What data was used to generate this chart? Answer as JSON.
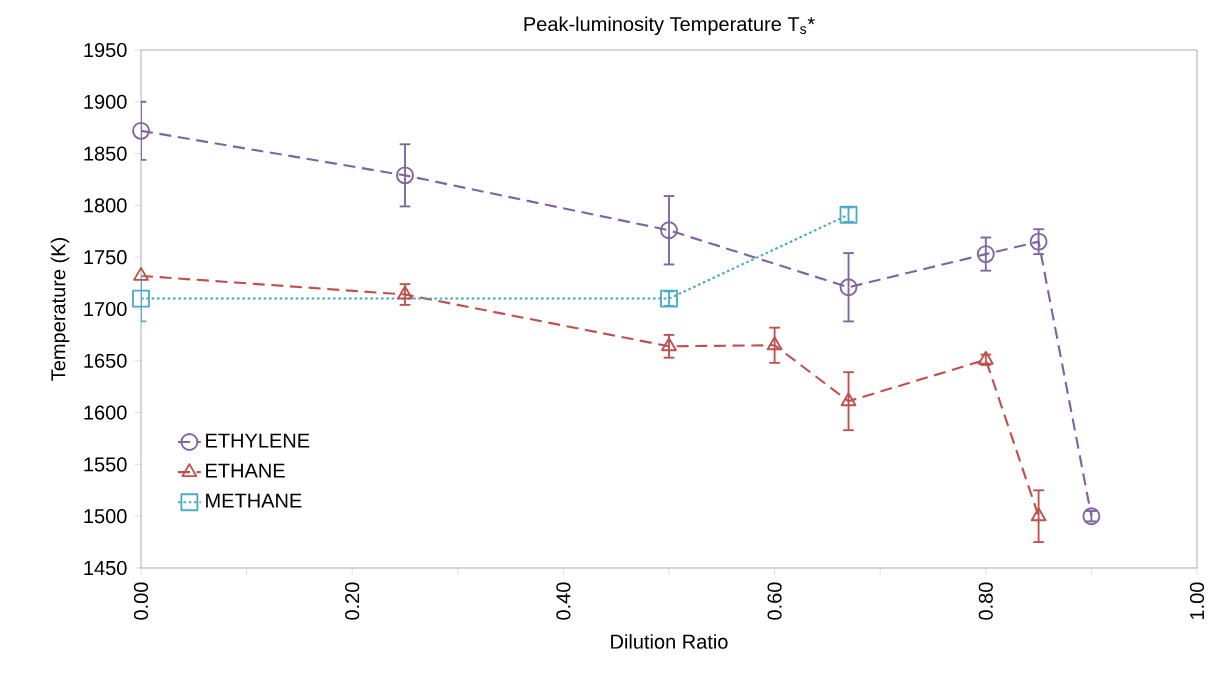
{
  "chart_data": {
    "type": "line",
    "title": "Peak-luminosity Temperature T$_{s}$*",
    "xlabel": "Dilution Ratio",
    "ylabel": "Temperature (K)",
    "xlim": [
      0,
      1
    ],
    "ylim": [
      1450,
      1950
    ],
    "xticks": [
      {
        "value": 0,
        "label": "0.00"
      },
      {
        "value": 0.1,
        "label": null
      },
      {
        "value": 0.2,
        "label": "0.20"
      },
      {
        "value": 0.3,
        "label": null
      },
      {
        "value": 0.4,
        "label": "0.40"
      },
      {
        "value": 0.5,
        "label": null
      },
      {
        "value": 0.6,
        "label": "0.60"
      },
      {
        "value": 0.7,
        "label": null
      },
      {
        "value": 0.8,
        "label": "0.80"
      },
      {
        "value": 0.9,
        "label": null
      },
      {
        "value": 1,
        "label": "1.00"
      }
    ],
    "yticks": [
      1450,
      1500,
      1550,
      1600,
      1650,
      1700,
      1750,
      1800,
      1850,
      1900,
      1950
    ],
    "grid": false,
    "legend": "bottom left",
    "series": [
      {
        "name": "ETHYLENE",
        "color": "#8064a2",
        "marker": "circle",
        "line_style": "dashed",
        "x": [
          0,
          0.25,
          0.5,
          0.67,
          0.8,
          0.85,
          0.9
        ],
        "values": [
          1872,
          1829,
          1776,
          1721,
          1753,
          1765,
          1500
        ],
        "errors": [
          28,
          30,
          33,
          33,
          16,
          12,
          5
        ]
      },
      {
        "name": "ETHANE",
        "color": "#c0504d",
        "marker": "triangle",
        "line_style": "dashed",
        "x": [
          0,
          0.25,
          0.5,
          0.6,
          0.67,
          0.8,
          0.85
        ],
        "values": [
          1732,
          1714,
          1664,
          1665,
          1611,
          1651,
          1500
        ],
        "errors": [
          null,
          10,
          11,
          17,
          28,
          5,
          25
        ]
      },
      {
        "name": "METHANE",
        "color": "#4bacc6",
        "marker": "square",
        "line_style": "dotted",
        "x": [
          0,
          0.5,
          0.67
        ],
        "values": [
          1710,
          1710,
          1791
        ],
        "errors": [
          22,
          7,
          7
        ]
      }
    ]
  }
}
